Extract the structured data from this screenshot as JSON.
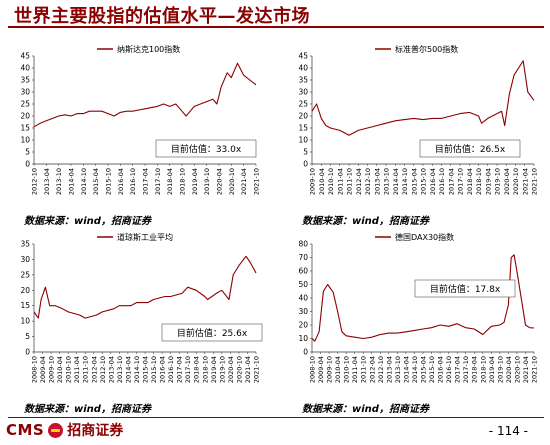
{
  "title": "世界主要股指的估值水平—发达市场",
  "footer": {
    "company": "招商证券",
    "cms": "CMS",
    "page": "- 114 -"
  },
  "source_note": "数据来源：wind，招商证券",
  "colors": {
    "accent": "#8b0000",
    "line": "#8b0000"
  },
  "chart_data": [
    {
      "type": "line",
      "title": "",
      "legend": "纳斯达克100指数",
      "legend_position": "top-center",
      "annotation": "目前估值：33.0x",
      "ylim": [
        0,
        45
      ],
      "yticks": [
        0,
        5,
        10,
        15,
        20,
        25,
        30,
        35,
        40,
        45
      ],
      "xticks": [
        "2012-10",
        "2013-04",
        "2013-10",
        "2014-04",
        "2014-10",
        "2015-04",
        "2015-10",
        "2016-04",
        "2016-10",
        "2017-04",
        "2017-10",
        "2018-04",
        "2018-10",
        "2019-04",
        "2019-10",
        "2020-04",
        "2020-10",
        "2021-04",
        "2021-10"
      ],
      "x": [
        "2012-10",
        "2013-01",
        "2013-04",
        "2013-07",
        "2013-10",
        "2014-01",
        "2014-04",
        "2014-07",
        "2014-10",
        "2015-01",
        "2015-04",
        "2015-07",
        "2015-10",
        "2016-01",
        "2016-04",
        "2016-07",
        "2016-10",
        "2017-01",
        "2017-04",
        "2017-07",
        "2017-10",
        "2018-01",
        "2018-04",
        "2018-07",
        "2018-10",
        "2018-12",
        "2019-02",
        "2019-04",
        "2019-07",
        "2019-10",
        "2020-01",
        "2020-03",
        "2020-05",
        "2020-08",
        "2020-10",
        "2021-01",
        "2021-04",
        "2021-07",
        "2021-10"
      ],
      "values": [
        15.5,
        17,
        18,
        19,
        20,
        20.5,
        20,
        21,
        21,
        22,
        22,
        22,
        21,
        20,
        21.5,
        22,
        22,
        22.5,
        23,
        23.5,
        24,
        25,
        24,
        25,
        22,
        20,
        22,
        24,
        25,
        26,
        27,
        25,
        32,
        38,
        36,
        42,
        37,
        35,
        33
      ]
    },
    {
      "type": "line",
      "title": "",
      "legend": "标准普尔500指数",
      "legend_position": "top-center",
      "annotation": "目前估值：26.5x",
      "ylim": [
        0,
        45
      ],
      "yticks": [
        0,
        5,
        10,
        15,
        20,
        25,
        30,
        35,
        40,
        45
      ],
      "xticks": [
        "2009-10",
        "2010-04",
        "2010-10",
        "2011-04",
        "2011-10",
        "2012-04",
        "2012-10",
        "2013-04",
        "2013-10",
        "2014-04",
        "2014-10",
        "2015-04",
        "2015-10",
        "2016-04",
        "2016-10",
        "2017-04",
        "2017-10",
        "2018-04",
        "2018-10",
        "2019-04",
        "2019-10",
        "2020-04",
        "2020-10",
        "2021-04",
        "2021-10"
      ],
      "x": [
        "2009-10",
        "2010-01",
        "2010-04",
        "2010-07",
        "2010-10",
        "2011-04",
        "2011-10",
        "2012-04",
        "2012-10",
        "2013-04",
        "2013-10",
        "2014-04",
        "2014-10",
        "2015-04",
        "2015-10",
        "2016-04",
        "2016-10",
        "2017-04",
        "2017-10",
        "2018-04",
        "2018-10",
        "2018-12",
        "2019-04",
        "2019-10",
        "2020-01",
        "2020-03",
        "2020-06",
        "2020-09",
        "2020-12",
        "2021-03",
        "2021-06",
        "2021-10"
      ],
      "values": [
        22,
        25,
        19,
        16,
        15,
        14,
        12,
        14,
        15,
        16,
        17,
        18,
        18.5,
        19,
        18.5,
        19,
        19,
        20,
        21,
        21.5,
        20,
        17,
        19,
        21,
        22,
        16,
        29,
        37,
        40,
        43,
        30,
        26.5
      ]
    },
    {
      "type": "line",
      "title": "",
      "legend": "道琼斯工业平均",
      "legend_position": "top-center",
      "annotation": "目前估值：25.6x",
      "ylim": [
        0,
        35
      ],
      "yticks": [
        0,
        5,
        10,
        15,
        20,
        25,
        30,
        35
      ],
      "xticks": [
        "2008-10",
        "2009-04",
        "2009-10",
        "2010-04",
        "2010-10",
        "2011-04",
        "2011-10",
        "2012-04",
        "2012-10",
        "2013-04",
        "2013-10",
        "2014-04",
        "2014-10",
        "2015-04",
        "2015-10",
        "2016-04",
        "2016-10",
        "2017-04",
        "2017-10",
        "2018-04",
        "2018-10",
        "2019-04",
        "2019-10",
        "2020-04",
        "2020-10",
        "2021-04",
        "2021-10"
      ],
      "x": [
        "2008-10",
        "2009-01",
        "2009-03",
        "2009-06",
        "2009-09",
        "2010-01",
        "2010-06",
        "2010-10",
        "2011-06",
        "2011-10",
        "2012-06",
        "2012-10",
        "2013-06",
        "2013-10",
        "2014-06",
        "2014-10",
        "2015-06",
        "2015-10",
        "2016-06",
        "2016-10",
        "2017-06",
        "2017-10",
        "2018-04",
        "2018-10",
        "2018-12",
        "2019-06",
        "2019-10",
        "2020-03",
        "2020-06",
        "2020-10",
        "2021-03",
        "2021-06",
        "2021-10"
      ],
      "values": [
        13,
        11,
        17,
        21,
        15,
        15,
        14,
        13,
        12,
        11,
        12,
        13,
        14,
        15,
        15,
        16,
        16,
        17,
        18,
        18,
        19,
        21,
        20,
        18,
        17,
        19,
        20,
        17,
        25,
        28,
        31,
        29,
        25.6
      ]
    },
    {
      "type": "line",
      "title": "",
      "legend": "德国DAX30指数",
      "legend_position": "top-center",
      "annotation": "目前估值：17.8x",
      "ylim": [
        0,
        80
      ],
      "yticks": [
        0,
        10,
        20,
        30,
        40,
        50,
        60,
        70,
        80
      ],
      "xticks": [
        "2008-10",
        "2009-04",
        "2009-10",
        "2010-04",
        "2010-10",
        "2011-04",
        "2011-10",
        "2012-04",
        "2012-10",
        "2013-04",
        "2013-10",
        "2014-04",
        "2014-10",
        "2015-04",
        "2015-10",
        "2016-04",
        "2016-10",
        "2017-04",
        "2017-10",
        "2018-04",
        "2018-10",
        "2019-04",
        "2019-10",
        "2020-04",
        "2020-10",
        "2021-04",
        "2021-10"
      ],
      "x": [
        "2008-10",
        "2008-12",
        "2009-03",
        "2009-06",
        "2009-09",
        "2010-01",
        "2010-04",
        "2010-07",
        "2010-10",
        "2011-04",
        "2011-10",
        "2012-04",
        "2012-10",
        "2013-04",
        "2013-10",
        "2014-04",
        "2014-10",
        "2015-04",
        "2015-10",
        "2016-04",
        "2016-10",
        "2017-04",
        "2017-10",
        "2018-04",
        "2018-10",
        "2019-04",
        "2019-10",
        "2020-01",
        "2020-04",
        "2020-06",
        "2020-08",
        "2020-10",
        "2021-01",
        "2021-04",
        "2021-07",
        "2021-10"
      ],
      "values": [
        10,
        8,
        15,
        45,
        50,
        44,
        30,
        15,
        12,
        11,
        10,
        11,
        13,
        14,
        14,
        15,
        16,
        17,
        18,
        20,
        19,
        21,
        18,
        17,
        13,
        19,
        20,
        22,
        35,
        70,
        72,
        60,
        40,
        20,
        18,
        17.8
      ]
    }
  ]
}
